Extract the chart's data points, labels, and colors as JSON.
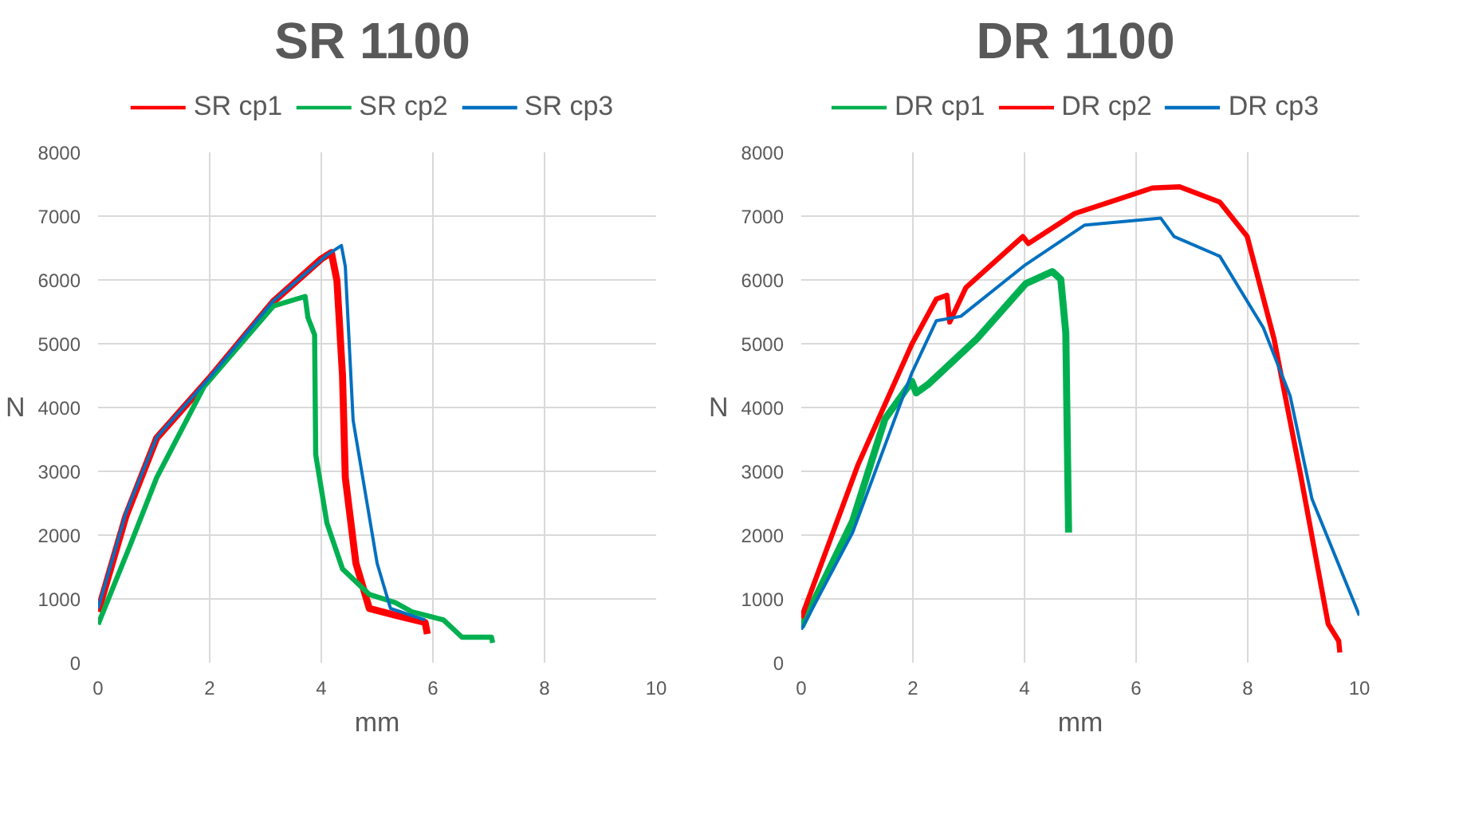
{
  "chart_data": [
    {
      "type": "line",
      "title": "SR 1100",
      "xlabel": "mm",
      "ylabel": "N",
      "xlim": [
        0,
        10
      ],
      "ylim": [
        0,
        8000
      ],
      "xticks": [
        0,
        2,
        4,
        6,
        8,
        10
      ],
      "yticks": [
        0,
        1000,
        2000,
        3000,
        4000,
        5000,
        6000,
        7000,
        8000
      ],
      "grid": true,
      "legend": "top",
      "marker": "none",
      "line_style": "solid",
      "series": [
        {
          "name": "SR cp1",
          "color": "#ff0000",
          "x": [
            0,
            0.5,
            1.05,
            2.0,
            3.14,
            4.0,
            4.18,
            4.28,
            4.38,
            4.43,
            4.62,
            4.86,
            5.3,
            5.86,
            5.9
          ],
          "values": [
            800,
            2300,
            3520,
            4460,
            5660,
            6330,
            6430,
            5990,
            4500,
            2900,
            1560,
            850,
            750,
            630,
            450
          ]
        },
        {
          "name": "SR cp2",
          "color": "#00b050",
          "x": [
            0,
            0.57,
            1.05,
            1.9,
            3.14,
            3.71,
            3.76,
            3.88,
            3.9,
            4.1,
            4.38,
            4.86,
            5.33,
            5.62,
            6.19,
            6.52,
            7.05,
            7.07
          ],
          "values": [
            600,
            1830,
            2900,
            4330,
            5590,
            5740,
            5410,
            5140,
            3260,
            2190,
            1470,
            1070,
            940,
            800,
            670,
            400,
            400,
            310
          ]
        },
        {
          "name": "SR cp3",
          "color": "#0070c0",
          "x": [
            0,
            0.5,
            1.05,
            2.0,
            3.14,
            4.1,
            4.36,
            4.43,
            4.57,
            5.0,
            5.24,
            5.86
          ],
          "values": [
            850,
            2350,
            3530,
            4470,
            5670,
            6390,
            6540,
            6210,
            3800,
            1560,
            850,
            670
          ]
        }
      ]
    },
    {
      "type": "line",
      "title": "DR 1100",
      "xlabel": "mm",
      "ylabel": "N",
      "xlim": [
        0,
        10
      ],
      "ylim": [
        0,
        8000
      ],
      "xticks": [
        0,
        2,
        4,
        6,
        8,
        10
      ],
      "yticks": [
        0,
        1000,
        2000,
        3000,
        4000,
        5000,
        6000,
        7000,
        8000
      ],
      "grid": true,
      "legend": "top",
      "marker": "none",
      "line_style": "solid",
      "series": [
        {
          "name": "DR cp1",
          "color": "#00b050",
          "x": [
            0,
            0.92,
            1.5,
            1.98,
            2.06,
            2.27,
            3.15,
            4.02,
            4.5,
            4.65,
            4.74,
            4.79
          ],
          "values": [
            560,
            2220,
            3820,
            4410,
            4230,
            4360,
            5080,
            5940,
            6130,
            6010,
            5170,
            2040
          ]
        },
        {
          "name": "DR cp2",
          "color": "#ff0000",
          "x": [
            0,
            1.02,
            1.98,
            2.42,
            2.61,
            2.66,
            2.95,
            3.97,
            4.07,
            4.9,
            6.29,
            6.78,
            7.5,
            7.99,
            8.47,
            8.95,
            9.44,
            9.63,
            9.65
          ],
          "values": [
            700,
            3110,
            4990,
            5700,
            5760,
            5340,
            5880,
            6680,
            6570,
            7040,
            7440,
            7460,
            7220,
            6680,
            5080,
            2930,
            610,
            340,
            160
          ]
        },
        {
          "name": "DR cp3",
          "color": "#0070c0",
          "x": [
            0,
            0.92,
            1.98,
            2.42,
            2.86,
            4.02,
            5.08,
            6.44,
            6.68,
            7.5,
            8.28,
            8.76,
            9.15,
            10
          ],
          "values": [
            520,
            2040,
            4540,
            5360,
            5430,
            6240,
            6860,
            6970,
            6680,
            6370,
            5250,
            4180,
            2570,
            740
          ]
        }
      ]
    }
  ]
}
